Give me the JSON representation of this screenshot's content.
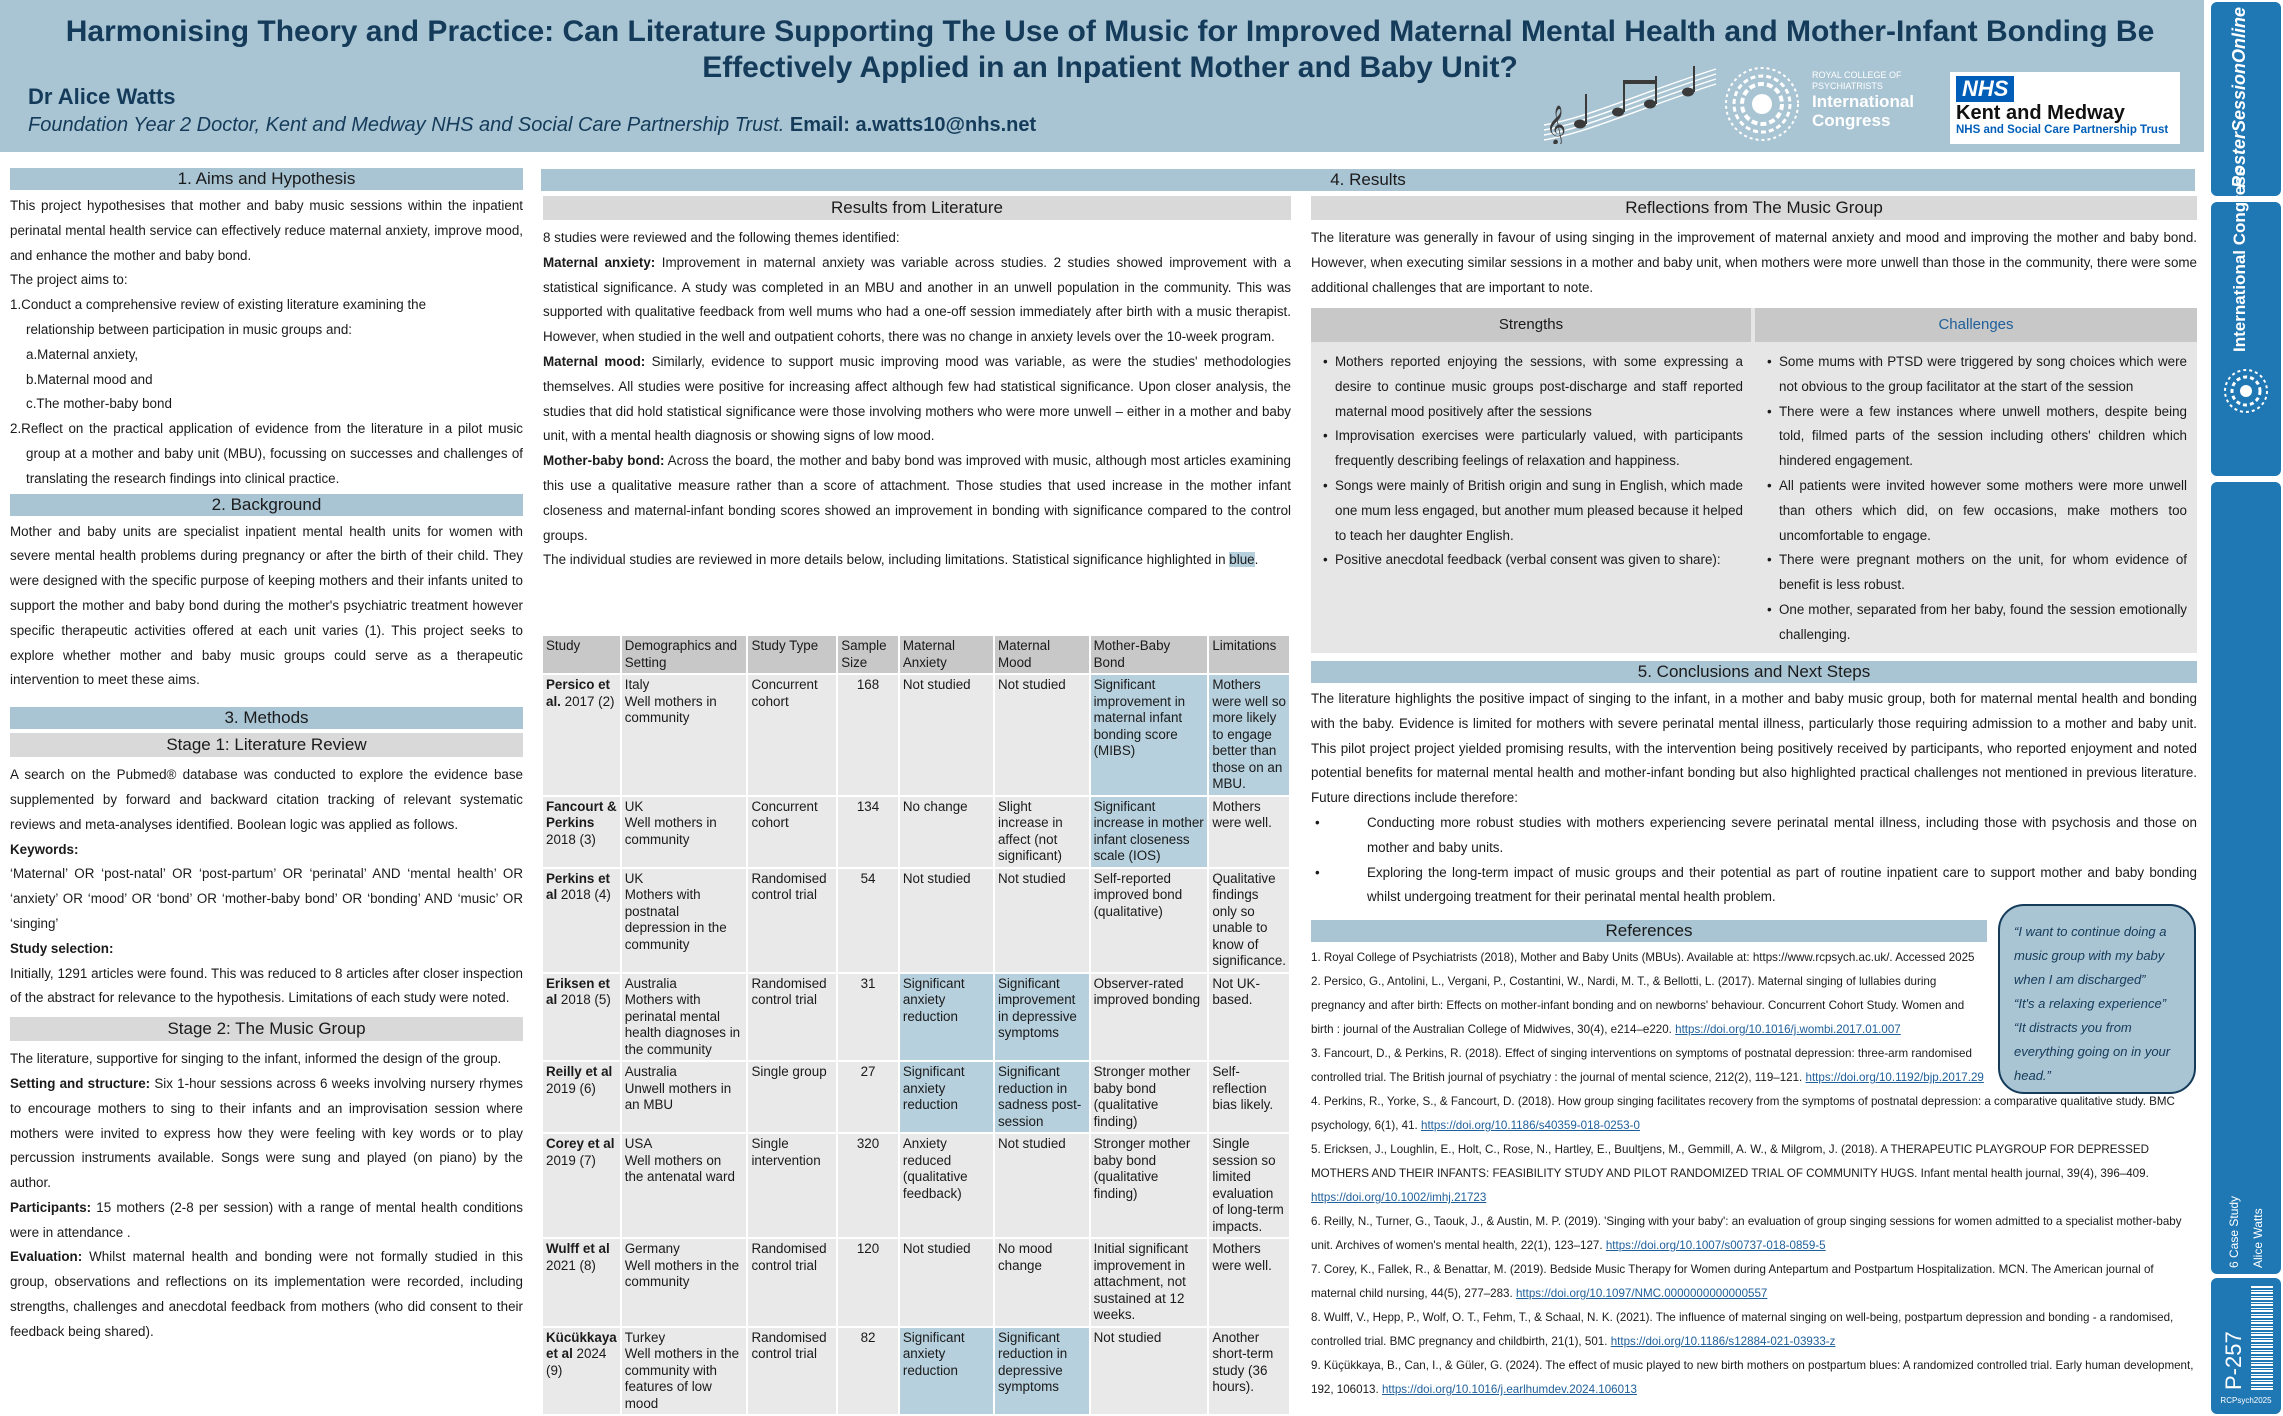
{
  "header": {
    "title": "Harmonising Theory and Practice: Can Literature Supporting The Use of Music for Improved Maternal Mental Health and Mother-Infant Bonding Be Effectively Applied in an Inpatient Mother and Baby Unit?",
    "author": "Dr Alice Watts",
    "affiliation": "Foundation Year 2 Doctor, Kent and Medway NHS and Social Care Partnership Trust.",
    "email_label": "Email:",
    "email": "a.watts10@nhs.net",
    "rc_small": "ROYAL COLLEGE OF PSYCHIATRISTS",
    "rc_international": "International",
    "rc_congress": "Congress",
    "nhs_badge": "NHS",
    "nhs_org": "Kent and Medway",
    "nhs_sub": "NHS and Social Care Partnership Trust"
  },
  "sidebar": {
    "poster_session": "PosterSessionOnline",
    "intl_congress": "International Congress",
    "case_study": "6 Case Study",
    "author_short": "Alice Watts",
    "poster_id": "P-257",
    "code": "RCPsych2025"
  },
  "aims": {
    "heading": "1. Aims and Hypothesis",
    "intro": "This project hypothesises that mother and baby music sessions within the inpatient perinatal mental health service can effectively reduce maternal anxiety, improve mood, and enhance the mother and baby bond.",
    "aims_lead": "The project aims to:",
    "aim1": "1.Conduct a comprehensive review of existing literature examining the",
    "aim1b": "relationship between participation in music groups and:",
    "a": "a.Maternal anxiety,",
    "b": "b.Maternal mood and",
    "c": "c.The mother-baby bond",
    "aim2": "2.Reflect on the practical application of evidence from the literature in a pilot music group at a mother and baby unit (MBU), focussing on successes and challenges of translating the research findings into clinical practice."
  },
  "background": {
    "heading": "2. Background",
    "text": "Mother and baby units are specialist inpatient mental health units for women with severe mental health problems during pregnancy or after the birth of their child. They were designed with the specific purpose of keeping mothers and their infants united to support the mother and baby bond during the mother's psychiatric treatment however specific therapeutic activities offered at each unit varies (1). This project seeks to explore whether mother and baby music groups could serve as a therapeutic intervention to meet these aims."
  },
  "methods": {
    "heading": "3. Methods",
    "stage1": "Stage 1: Literature Review",
    "search": "A search on the Pubmed® database was conducted to explore the evidence base supplemented by forward and backward citation tracking of relevant systematic reviews and meta-analyses identified. Boolean logic was applied as follows.",
    "keywords_label": "Keywords:",
    "keywords": "‘Maternal’ OR ‘post-natal’ OR ‘post-partum’ OR ‘perinatal’ AND ‘mental health’ OR ‘anxiety’ OR ‘mood’ OR ‘bond’ OR ‘mother-baby bond’ OR ‘bonding’ AND ‘music’ OR ‘singing’",
    "selection_label": "Study selection:",
    "selection": "Initially, 1291 articles were found. This was reduced to 8 articles after closer inspection of the abstract for relevance to the hypothesis. Limitations of each study were noted.",
    "stage2": "Stage 2: The Music Group",
    "group_intro": "The literature, supportive for singing to the infant, informed the design of the group.",
    "setting_label": "Setting and structure:",
    "setting": "Six 1-hour sessions across 6 weeks involving nursery rhymes to encourage mothers to sing to their infants and an improvisation session where mothers were invited to express how they were feeling with key words or to play percussion instruments available. Songs were sung and played (on piano) by the author.",
    "participants_label": "Participants:",
    "participants": "15 mothers (2-8 per session) with a range of mental health conditions were in attendance .",
    "evaluation_label": "Evaluation:",
    "evaluation": "Whilst maternal health and bonding were not formally studied in this group, observations and reflections on its implementation were recorded, including strengths, challenges and anecdotal feedback from mothers (who did consent to their feedback being shared)."
  },
  "results": {
    "heading": "4. Results",
    "lit_heading": "Results from Literature",
    "lit_intro": "8 studies were reviewed and the following themes identified:",
    "anxiety_label": "Maternal anxiety:",
    "anxiety": "Improvement in maternal anxiety was variable across studies. 2 studies showed improvement with a statistical significance. A study was completed in an MBU and another in an unwell population in the community. This was supported with qualitative feedback from well mums who had a one-off session immediately after birth with a music therapist. However, when studied in the well and outpatient cohorts, there was no change in anxiety levels over the 10-week program.",
    "mood_label": "Maternal mood:",
    "mood": "Similarly, evidence to support music improving mood was variable, as were the studies' methodologies themselves. All studies were positive for increasing affect although few had statistical significance. Upon closer analysis, the studies that did hold statistical significance were those involving mothers who were more unwell – either in a mother and baby unit, with a mental health diagnosis or showing signs of low mood.",
    "bond_label": "Mother-baby bond:",
    "bond": "Across the board, the mother and baby bond was improved with music, although most articles examining this use a qualitative measure rather than a score of attachment. Those studies that used increase in the mother infant closeness and maternal-infant bonding scores showed an improvement in bonding with significance compared to the control groups.",
    "review_note": "The individual studies are reviewed in more details below, including limitations. Statistical significance highlighted in",
    "review_note_blue": "blue",
    "table_headers": [
      "Study",
      "Demographics and Setting",
      "Study Type",
      "Sample Size",
      "Maternal Anxiety",
      "Maternal Mood",
      "Mother-Baby Bond",
      "Limitations"
    ],
    "table_rows": [
      {
        "study": "Persico et al.",
        "year": "2017 (2)",
        "demo": "Italy\nWell mothers in community",
        "type": "Concurrent cohort",
        "size": "168",
        "anxiety": "Not studied",
        "mood": "Not studied",
        "bond": "Significant improvement in maternal infant bonding score (MIBS)",
        "limits": "Mothers were well so more likely to engage better than those on an MBU.",
        "sig": [
          false,
          false,
          true,
          true
        ]
      },
      {
        "study": "Fancourt & Perkins",
        "year": "2018 (3)",
        "demo": "UK\nWell mothers in community",
        "type": "Concurrent cohort",
        "size": "134",
        "anxiety": "No change",
        "mood": "Slight increase in affect (not significant)",
        "bond": "Significant increase in mother infant closeness scale (IOS)",
        "limits": "Mothers were well.",
        "sig": [
          false,
          false,
          true,
          false
        ]
      },
      {
        "study": "Perkins et al",
        "year": "2018 (4)",
        "demo": "UK\nMothers with postnatal depression in the community",
        "type": "Randomised control trial",
        "size": "54",
        "anxiety": "Not studied",
        "mood": "Not studied",
        "bond": "Self-reported improved bond (qualitative)",
        "limits": "Qualitative findings only so unable to know of significance.",
        "sig": [
          false,
          false,
          false,
          false
        ]
      },
      {
        "study": "Eriksen et al",
        "year": "2018 (5)",
        "demo": "Australia\nMothers with perinatal mental health diagnoses in the community",
        "type": "Randomised control trial",
        "size": "31",
        "anxiety": "Significant anxiety reduction",
        "mood": "Significant improvement in depressive symptoms",
        "bond": "Observer-rated improved bonding",
        "limits": "Not UK-based.",
        "sig": [
          true,
          true,
          false,
          false
        ]
      },
      {
        "study": "Reilly et al",
        "year": "2019 (6)",
        "demo": "Australia\nUnwell mothers in an MBU",
        "type": "Single group",
        "size": "27",
        "anxiety": "Significant anxiety reduction",
        "mood": "Significant reduction in sadness post-session",
        "bond": "Stronger mother baby bond (qualitative finding)",
        "limits": "Self-reflection bias likely.",
        "sig": [
          true,
          true,
          false,
          false
        ]
      },
      {
        "study": "Corey et al",
        "year": "2019 (7)",
        "demo": "USA\nWell mothers on the antenatal ward",
        "type": "Single intervention",
        "size": "320",
        "anxiety": "Anxiety reduced (qualitative feedback)",
        "mood": "Not studied",
        "bond": "Stronger mother baby bond (qualitative finding)",
        "limits": "Single session so limited evaluation of long-term impacts.",
        "sig": [
          false,
          false,
          false,
          false
        ]
      },
      {
        "study": "Wulff et al",
        "year": "2021 (8)",
        "demo": "Germany\nWell mothers in the community",
        "type": "Randomised control trial",
        "size": "120",
        "anxiety": "Not studied",
        "mood": "No mood change",
        "bond": "Initial significant improvement in attachment, not sustained at 12 weeks.",
        "limits": "Mothers were well.",
        "sig": [
          false,
          false,
          false,
          false
        ]
      },
      {
        "study": "Kücükkaya et al",
        "year": "2024 (9)",
        "demo": "Turkey\nWell mothers in the community with features of low mood",
        "type": "Randomised control trial",
        "size": "82",
        "anxiety": "Significant anxiety reduction",
        "mood": "Significant reduction in depressive symptoms",
        "bond": "Not studied",
        "limits": "Another short-term study (36 hours).",
        "sig": [
          true,
          true,
          false,
          false
        ]
      }
    ],
    "reflections_heading": "Reflections from The Music Group",
    "reflections": "The literature was generally in favour of using singing in the improvement of maternal anxiety and mood and improving the mother and baby bond. However, when executing similar sessions in a mother and baby unit, when mothers were more unwell than those in the community, there were some additional challenges that are important to note.",
    "strengths_heading": "Strengths",
    "challenges_heading": "Challenges",
    "strengths": [
      "Mothers reported enjoying the sessions, with some expressing a desire to continue music groups post-discharge and staff reported maternal mood positively after the sessions",
      "Improvisation exercises were particularly valued, with participants frequently describing feelings of relaxation and happiness.",
      "Songs were mainly of British origin and sung in English, which made one mum less engaged, but another mum pleased because it helped to teach her daughter English.",
      "Positive anecdotal feedback (verbal consent was given to share):"
    ],
    "challenges": [
      "Some mums with PTSD were triggered by song choices which were not obvious to the group facilitator at the start of the session",
      "There were a few instances where unwell mothers, despite being told, filmed parts of the session including others' children which hindered engagement.",
      "All patients were invited however some mothers were more unwell than others which did, on few occasions, make mothers too uncomfortable to engage.",
      "There were pregnant mothers on the unit, for whom evidence of benefit is less robust.",
      "One mother, separated from her baby, found the session emotionally challenging."
    ]
  },
  "conclusions": {
    "heading": "5. Conclusions and Next Steps",
    "text": "The literature highlights the positive impact of singing to the infant, in a mother and baby music group, both for maternal mental health and bonding with the baby. Evidence is limited for mothers with severe perinatal mental illness, particularly those requiring admission to a mother and baby unit. This pilot project project yielded promising results, with the intervention being positively received by participants, who reported enjoyment and noted potential benefits for maternal mental health and mother-infant bonding but also highlighted practical challenges not mentioned in previous literature. Future directions include therefore:",
    "bullets": [
      "Conducting more robust studies with mothers experiencing severe perinatal mental illness, including those with psychosis and those on mother and baby units.",
      "Exploring the long-term impact of music groups and their potential as part of routine inpatient care to support mother and baby bonding whilst undergoing treatment for their perinatal mental health problem."
    ]
  },
  "quote": {
    "lines": [
      "“I want to continue doing a music group with my baby when I am discharged”",
      "“It's a relaxing experience”",
      "“It distracts you from everything going on in your head.”"
    ]
  },
  "references": {
    "heading": "References",
    "items": [
      {
        "text": "1. Royal College of Psychiatrists (2018), Mother and Baby Units (MBUs). Available at: https://www.rcpsych.ac.uk/. Accessed 2025",
        "link": ""
      },
      {
        "text": "2. Persico, G., Antolini, L., Vergani, P., Costantini, W., Nardi, M. T., & Bellotti, L. (2017). Maternal singing of lullabies during pregnancy and after birth: Effects on mother-infant bonding and on newborns' behaviour. Concurrent Cohort Study. Women and birth : journal of the Australian College of Midwives, 30(4), e214–e220.",
        "link": "https://doi.org/10.1016/j.wombi.2017.01.007"
      },
      {
        "text": "3. Fancourt, D., & Perkins, R. (2018). Effect of singing interventions on symptoms of postnatal depression: three-arm randomised controlled trial. The British journal of psychiatry : the journal of mental science, 212(2), 119–121.",
        "link": "https://doi.org/10.1192/bjp.2017.29"
      },
      {
        "text": "4. Perkins, R., Yorke, S., & Fancourt, D. (2018). How group singing facilitates recovery from the symptoms of postnatal depression: a comparative qualitative study. BMC psychology, 6(1), 41.",
        "link": "https://doi.org/10.1186/s40359-018-0253-0"
      },
      {
        "text": "5. Ericksen, J., Loughlin, E., Holt, C., Rose, N., Hartley, E., Buultjens, M., Gemmill, A. W., & Milgrom, J. (2018). A THERAPEUTIC PLAYGROUP FOR DEPRESSED MOTHERS AND THEIR INFANTS: FEASIBILITY STUDY AND PILOT RANDOMIZED TRIAL OF COMMUNITY HUGS. Infant mental health journal, 39(4), 396–409.",
        "link": "https://doi.org/10.1002/imhj.21723"
      },
      {
        "text": "6. Reilly, N., Turner, G., Taouk, J., & Austin, M. P. (2019). 'Singing with your baby': an evaluation of group singing sessions for women admitted to a specialist mother-baby unit. Archives of women's mental health, 22(1), 123–127.",
        "link": "https://doi.org/10.1007/s00737-018-0859-5"
      },
      {
        "text": "7. Corey, K., Fallek, R., & Benattar, M. (2019). Bedside Music Therapy for Women during Antepartum and Postpartum Hospitalization. MCN. The American journal of maternal child nursing, 44(5), 277–283.",
        "link": "https://doi.org/10.1097/NMC.0000000000000557"
      },
      {
        "text": "8. Wulff, V., Hepp, P., Wolf, O. T., Fehm, T., & Schaal, N. K. (2021). The influence of maternal singing on well-being, postpartum depression and bonding - a randomised, controlled trial. BMC pregnancy and childbirth, 21(1), 501.",
        "link": "https://doi.org/10.1186/s12884-021-03933-z"
      },
      {
        "text": "9. Küçükkaya, B., Can, I., & Güler, G. (2024). The effect of music played to new birth mothers on postpartum blues: A randomized controlled trial. Early human development, 192, 106013.",
        "link": "https://doi.org/10.1016/j.earlhumdev.2024.106013"
      }
    ]
  },
  "colors": {
    "header_bg": "#a9c4d3",
    "title_text": "#143b5a",
    "significant": "#b7d0dd",
    "nhs_blue": "#005eb8",
    "sidebar_blue": "#1f77b4"
  }
}
